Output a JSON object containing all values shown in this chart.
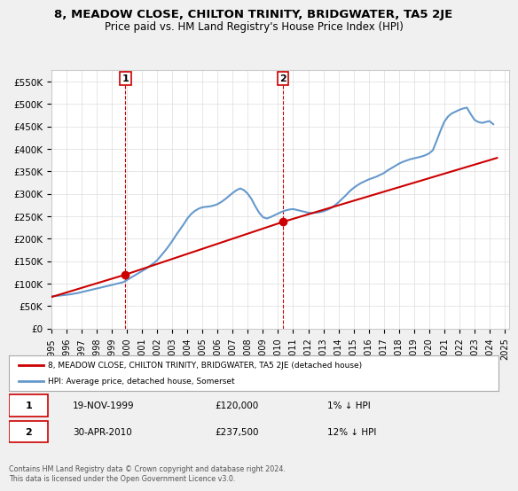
{
  "title": "8, MEADOW CLOSE, CHILTON TRINITY, BRIDGWATER, TA5 2JE",
  "subtitle": "Price paid vs. HM Land Registry's House Price Index (HPI)",
  "ylabel": "",
  "ylim": [
    0,
    575000
  ],
  "yticks": [
    0,
    50000,
    100000,
    150000,
    200000,
    250000,
    300000,
    350000,
    400000,
    450000,
    500000,
    550000
  ],
  "ytick_labels": [
    "£0",
    "£50K",
    "£100K",
    "£150K",
    "£200K",
    "£250K",
    "£300K",
    "£350K",
    "£400K",
    "£450K",
    "£500K",
    "£550K"
  ],
  "purchase1": {
    "date": 1999.9,
    "price": 120000,
    "label": "1",
    "vline_color": "#cc0000"
  },
  "purchase2": {
    "date": 2010.33,
    "price": 237500,
    "label": "2",
    "vline_color": "#cc0000"
  },
  "legend_line1": "8, MEADOW CLOSE, CHILTON TRINITY, BRIDGWATER, TA5 2JE (detached house)",
  "legend_line2": "HPI: Average price, detached house, Somerset",
  "table_row1": [
    "1",
    "19-NOV-1999",
    "£120,000",
    "1% ↓ HPI"
  ],
  "table_row2": [
    "2",
    "30-APR-2010",
    "£237,500",
    "12% ↓ HPI"
  ],
  "footer": "Contains HM Land Registry data © Crown copyright and database right 2024.\nThis data is licensed under the Open Government Licence v3.0.",
  "hpi_color": "#6699cc",
  "price_color": "#cc0000",
  "bg_color": "#f0f0f0",
  "plot_bg_color": "#ffffff",
  "grid_color": "#dddddd",
  "hpi_data_x": [
    1995,
    1995.25,
    1995.5,
    1995.75,
    1996,
    1996.25,
    1996.5,
    1996.75,
    1997,
    1997.25,
    1997.5,
    1997.75,
    1998,
    1998.25,
    1998.5,
    1998.75,
    1999,
    1999.25,
    1999.5,
    1999.75,
    2000,
    2000.25,
    2000.5,
    2000.75,
    2001,
    2001.25,
    2001.5,
    2001.75,
    2002,
    2002.25,
    2002.5,
    2002.75,
    2003,
    2003.25,
    2003.5,
    2003.75,
    2004,
    2004.25,
    2004.5,
    2004.75,
    2005,
    2005.25,
    2005.5,
    2005.75,
    2006,
    2006.25,
    2006.5,
    2006.75,
    2007,
    2007.25,
    2007.5,
    2007.75,
    2008,
    2008.25,
    2008.5,
    2008.75,
    2009,
    2009.25,
    2009.5,
    2009.75,
    2010,
    2010.25,
    2010.5,
    2010.75,
    2011,
    2011.25,
    2011.5,
    2011.75,
    2012,
    2012.25,
    2012.5,
    2012.75,
    2013,
    2013.25,
    2013.5,
    2013.75,
    2014,
    2014.25,
    2014.5,
    2014.75,
    2015,
    2015.25,
    2015.5,
    2015.75,
    2016,
    2016.25,
    2016.5,
    2016.75,
    2017,
    2017.25,
    2017.5,
    2017.75,
    2018,
    2018.25,
    2018.5,
    2018.75,
    2019,
    2019.25,
    2019.5,
    2019.75,
    2020,
    2020.25,
    2020.5,
    2020.75,
    2021,
    2021.25,
    2021.5,
    2021.75,
    2022,
    2022.25,
    2022.5,
    2022.75,
    2023,
    2023.25,
    2023.5,
    2023.75,
    2024,
    2024.25
  ],
  "hpi_data_y": [
    72000,
    72500,
    73000,
    74000,
    75000,
    76000,
    77500,
    79000,
    81000,
    83000,
    85000,
    87000,
    89000,
    91000,
    93000,
    95000,
    97000,
    99000,
    101000,
    103000,
    108000,
    113000,
    118000,
    123000,
    128000,
    133000,
    139000,
    145000,
    152000,
    162000,
    172000,
    183000,
    195000,
    208000,
    220000,
    232000,
    245000,
    255000,
    262000,
    267000,
    270000,
    271000,
    272000,
    274000,
    277000,
    282000,
    288000,
    295000,
    302000,
    308000,
    312000,
    308000,
    300000,
    288000,
    272000,
    258000,
    248000,
    245000,
    248000,
    252000,
    256000,
    260000,
    263000,
    265000,
    266000,
    264000,
    262000,
    260000,
    258000,
    257000,
    258000,
    259000,
    261000,
    264000,
    268000,
    274000,
    281000,
    289000,
    297000,
    306000,
    313000,
    319000,
    324000,
    328000,
    332000,
    335000,
    338000,
    342000,
    346000,
    352000,
    357000,
    362000,
    367000,
    371000,
    374000,
    377000,
    379000,
    381000,
    383000,
    386000,
    390000,
    397000,
    418000,
    440000,
    460000,
    472000,
    479000,
    483000,
    487000,
    490000,
    492000,
    478000,
    465000,
    460000,
    458000,
    460000,
    462000,
    455000
  ],
  "price_data_x": [
    1995.0,
    1999.9,
    2010.33,
    2024.5
  ],
  "price_data_y": [
    70000,
    120000,
    237500,
    380000
  ],
  "xtick_years": [
    1995,
    1996,
    1997,
    1998,
    1999,
    2000,
    2001,
    2002,
    2003,
    2004,
    2005,
    2006,
    2007,
    2008,
    2009,
    2010,
    2011,
    2012,
    2013,
    2014,
    2015,
    2016,
    2017,
    2018,
    2019,
    2020,
    2021,
    2022,
    2023,
    2024,
    2025
  ]
}
